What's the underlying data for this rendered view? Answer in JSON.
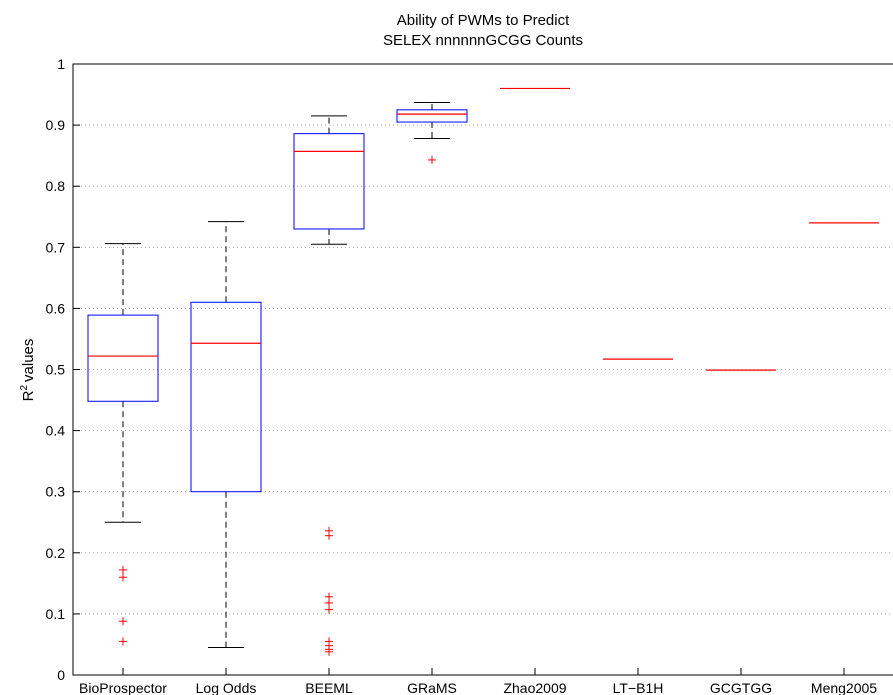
{
  "chart_data": {
    "type": "box",
    "title": [
      "Ability of PWMs to Predict",
      "SELEX nnnnnnGCGG Counts"
    ],
    "xlabel": "",
    "ylabel": "values",
    "ylabel_prefix": "R",
    "ylabel_superscript": "2",
    "ylim": [
      0,
      1
    ],
    "yticks": [
      "0",
      "0.1",
      "0.2",
      "0.3",
      "0.4",
      "0.5",
      "0.6",
      "0.7",
      "0.8",
      "0.9",
      "1"
    ],
    "grid": "horizontal-dotted",
    "categories": [
      "BioProspector",
      "Log Odds",
      "BEEML",
      "GRaMS",
      "Zhao2009",
      "LT−B1H",
      "GCGTGG",
      "Meng2005"
    ],
    "boxes": [
      {
        "category": "BioProspector",
        "whisker_low": 0.25,
        "q1": 0.448,
        "median": 0.522,
        "q3": 0.589,
        "whisker_high": 0.706,
        "outliers": [
          0.172,
          0.16,
          0.088,
          0.055
        ]
      },
      {
        "category": "Log Odds",
        "whisker_low": 0.045,
        "q1": 0.3,
        "median": 0.543,
        "q3": 0.61,
        "whisker_high": 0.742,
        "outliers": []
      },
      {
        "category": "BEEML",
        "whisker_low": 0.705,
        "q1": 0.73,
        "median": 0.857,
        "q3": 0.886,
        "whisker_high": 0.915,
        "outliers": [
          0.236,
          0.228,
          0.128,
          0.118,
          0.107,
          0.055,
          0.048,
          0.042,
          0.038
        ]
      },
      {
        "category": "GRaMS",
        "whisker_low": 0.878,
        "q1": 0.905,
        "median": 0.918,
        "q3": 0.925,
        "whisker_high": 0.937,
        "outliers": [
          0.843
        ]
      },
      {
        "category": "Zhao2009",
        "whisker_low": 0.96,
        "q1": 0.96,
        "median": 0.96,
        "q3": 0.96,
        "whisker_high": 0.96,
        "outliers": []
      },
      {
        "category": "LT−B1H",
        "whisker_low": 0.517,
        "q1": 0.517,
        "median": 0.517,
        "q3": 0.517,
        "whisker_high": 0.517,
        "outliers": []
      },
      {
        "category": "GCGTGG",
        "whisker_low": 0.499,
        "q1": 0.499,
        "median": 0.499,
        "q3": 0.499,
        "whisker_high": 0.499,
        "outliers": []
      },
      {
        "category": "Meng2005",
        "whisker_low": 0.74,
        "q1": 0.74,
        "median": 0.74,
        "q3": 0.74,
        "whisker_high": 0.74,
        "outliers": []
      }
    ],
    "colors": {
      "box": "#0000ff",
      "median": "#ff0000",
      "whisker": "#000000",
      "outlier": "#ff0000",
      "grid": "#999999"
    }
  }
}
